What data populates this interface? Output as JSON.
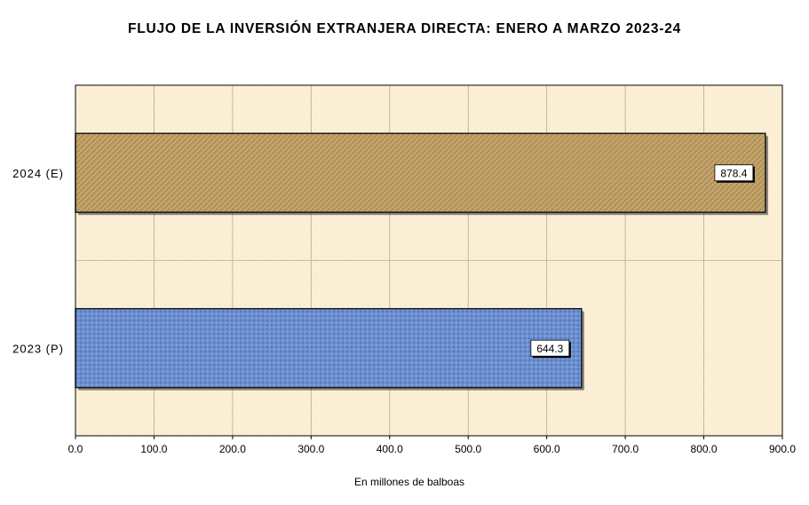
{
  "chart_data": {
    "type": "bar",
    "orientation": "horizontal",
    "title": "FLUJO DE LA INVERSIÓN EXTRANJERA DIRECTA: ENERO A MARZO 2023-24",
    "xlabel": "En millones de balboas",
    "ylabel": "",
    "categories": [
      "2024 (E)",
      "2023 (P)"
    ],
    "values": [
      878.4,
      644.3
    ],
    "data_labels": [
      "878.4",
      "644.3"
    ],
    "xlim": [
      0,
      900
    ],
    "x_ticks": [
      "0.0",
      "100.0",
      "200.0",
      "300.0",
      "400.0",
      "500.0",
      "600.0",
      "700.0",
      "800.0",
      "900.0"
    ],
    "grid": true,
    "legend": "none",
    "colors": {
      "plot_background": "#fbefd6",
      "bar_2024": "#c9a76a",
      "bar_2023": "#6b8fd0",
      "grid": "#b8ab90"
    }
  }
}
